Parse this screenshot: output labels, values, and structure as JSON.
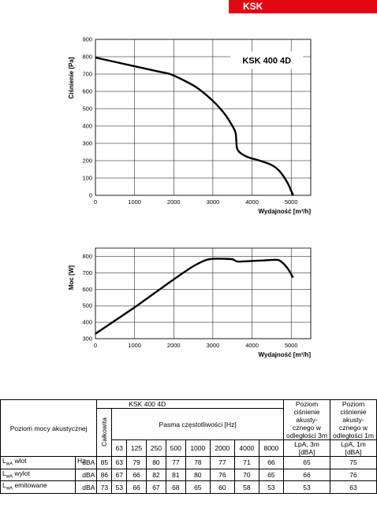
{
  "badge": "KSK",
  "chart_data": [
    {
      "type": "line",
      "ylabel": "Ciśnienie [Pa]",
      "xlabel": "Wydajność [m³/h]",
      "annotation": "KSK 400 4D",
      "xlim": [
        0,
        5500
      ],
      "ylim": [
        0,
        900
      ],
      "xticks": [
        0,
        1000,
        2000,
        3000,
        4000,
        5000
      ],
      "yticks": [
        0,
        100,
        200,
        300,
        400,
        500,
        600,
        700,
        800,
        900
      ],
      "grid": true,
      "series": [
        {
          "x": [
            0,
            400,
            800,
            1200,
            1600,
            1900,
            2200,
            2600,
            3000,
            3300,
            3500,
            3580,
            3600,
            3620,
            3700,
            3900,
            4200,
            4500,
            4700,
            4900,
            5050
          ],
          "y": [
            795,
            775,
            755,
            735,
            715,
            700,
            670,
            620,
            545,
            470,
            400,
            360,
            310,
            270,
            245,
            220,
            200,
            175,
            140,
            75,
            0
          ]
        }
      ]
    },
    {
      "type": "line",
      "ylabel": "Moc [W]",
      "xlabel": "Wydajność [m³/h]",
      "xlim": [
        0,
        5500
      ],
      "ylim": [
        300,
        850
      ],
      "xticks": [
        0,
        1000,
        2000,
        3000,
        4000,
        5000
      ],
      "yticks": [
        300,
        400,
        500,
        600,
        700,
        800
      ],
      "grid": true,
      "series": [
        {
          "x": [
            0,
            500,
            1000,
            1500,
            2000,
            2500,
            2800,
            3000,
            3300,
            3500,
            3600,
            3700,
            4000,
            4300,
            4500,
            4700,
            4900,
            5050
          ],
          "y": [
            330,
            410,
            490,
            575,
            660,
            740,
            775,
            785,
            785,
            782,
            770,
            768,
            772,
            775,
            778,
            775,
            730,
            670
          ]
        }
      ]
    }
  ],
  "table": {
    "model": "KSK 400 4D",
    "level_label": "Poziom mocy akustycznej",
    "total_label": "Całkowita",
    "band_label": "Pasma częstotliwości [Hz]",
    "lpa3_header": "Poziom ciśnienie akusty-cznego w odległości 3m",
    "lpa1_header": "Poziom ciśnienie akusty-cznego w odległości 1m",
    "hz_label": "Hz",
    "bands": [
      "63",
      "125",
      "250",
      "500",
      "1000",
      "2000",
      "4000",
      "8000"
    ],
    "lpa3_unit": "LpA, 3m [dBA]",
    "lpa1_unit": "LpA, 1m [dBA]",
    "rows": [
      {
        "lw": "L",
        "sub": "wA",
        "name": " wlot",
        "unit": "dBA",
        "total": "85",
        "bands": [
          "63",
          "79",
          "80",
          "77",
          "78",
          "77",
          "71",
          "66"
        ],
        "lpa3": "65",
        "lpa1": "75"
      },
      {
        "lw": "L",
        "sub": "wA",
        "name": " wylot",
        "unit": "dBA",
        "total": "86",
        "bands": [
          "67",
          "66",
          "82",
          "81",
          "80",
          "76",
          "70",
          "65"
        ],
        "lpa3": "66",
        "lpa1": "76"
      },
      {
        "lw": "L",
        "sub": "wA",
        "name": " emitowane",
        "unit": "dBA",
        "total": "73",
        "bands": [
          "53",
          "66",
          "67",
          "68",
          "65",
          "60",
          "58",
          "53"
        ],
        "lpa3": "53",
        "lpa1": "63"
      }
    ]
  }
}
